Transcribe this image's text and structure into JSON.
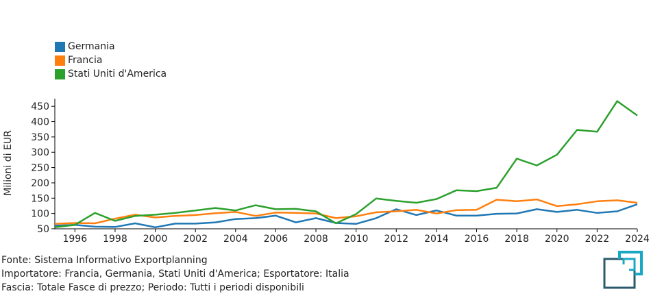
{
  "chart_data": {
    "type": "line",
    "ylabel": "Milioni di EUR",
    "xlabel": "",
    "title": "",
    "xlim": [
      1995,
      2024
    ],
    "ylim": [
      50,
      475
    ],
    "x_ticks": [
      "1996",
      "1998",
      "2000",
      "2002",
      "2004",
      "2006",
      "2008",
      "2010",
      "2012",
      "2014",
      "2016",
      "2018",
      "2020",
      "2022",
      "2024"
    ],
    "y_ticks": [
      "50",
      "100",
      "150",
      "200",
      "250",
      "300",
      "350",
      "400",
      "450"
    ],
    "x": [
      1995,
      1996,
      1997,
      1998,
      1999,
      2000,
      2001,
      2002,
      2003,
      2004,
      2005,
      2006,
      2007,
      2008,
      2009,
      2010,
      2011,
      2012,
      2013,
      2014,
      2015,
      2016,
      2017,
      2018,
      2019,
      2020,
      2021,
      2022,
      2023,
      2024
    ],
    "legend_position": "top-left",
    "grid": false,
    "series": [
      {
        "name": "Germania",
        "color": "#1f77b4",
        "values": [
          60,
          63,
          57,
          56,
          68,
          55,
          67,
          67,
          71,
          82,
          85,
          93,
          71,
          85,
          69,
          66,
          85,
          114,
          95,
          110,
          93,
          93,
          99,
          100,
          114,
          105,
          112,
          102,
          107,
          130
        ]
      },
      {
        "name": "Francia",
        "color": "#ff7f0e",
        "values": [
          66,
          69,
          68,
          83,
          96,
          87,
          92,
          95,
          101,
          105,
          92,
          103,
          102,
          100,
          85,
          91,
          104,
          107,
          112,
          100,
          111,
          112,
          145,
          140,
          146,
          124,
          130,
          140,
          143,
          135
        ]
      },
      {
        "name": "Stati Uniti d'America",
        "color": "#2ca02c",
        "values": [
          55,
          63,
          102,
          76,
          92,
          96,
          102,
          110,
          118,
          110,
          127,
          114,
          115,
          107,
          68,
          98,
          149,
          141,
          135,
          147,
          176,
          173,
          184,
          279,
          257,
          292,
          373,
          367,
          467,
          420
        ]
      }
    ]
  },
  "footer": {
    "line1": "Fonte: Sistema Informativo Exportplanning",
    "line2": "Importatore: Francia, Germania, Stati Uniti d'America; Esportatore: Italia",
    "line3": "Fascia: Totale Fasce di prezzo; Periodo: Tutti i periodi disponibili"
  },
  "logo": {
    "icon": "exportplanning-logo-icon",
    "colors": [
      "#2a5a6b",
      "#1aa7c4"
    ]
  }
}
